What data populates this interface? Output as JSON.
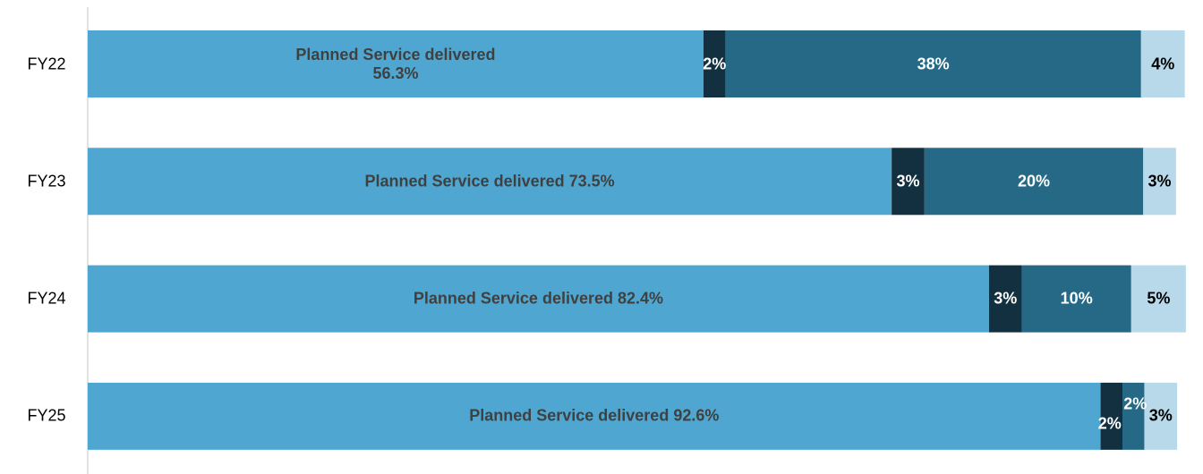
{
  "chart_data": {
    "type": "stacked-bar-horizontal",
    "categories": [
      "FY22",
      "FY23",
      "FY24",
      "FY25"
    ],
    "xlim": [
      0,
      100
    ],
    "series": [
      {
        "name": "Planned Service delivered",
        "color": "#4fa7d1",
        "label_color": "#404040",
        "values": [
          56.3,
          73.5,
          82.4,
          92.6
        ],
        "value_labels": [
          "Planned Service delivered\n56.3%",
          "Planned Service delivered 73.5%",
          "Planned Service delivered 82.4%",
          "Planned Service delivered 92.6%"
        ]
      },
      {
        "color": "#12303f",
        "label_color": "#ffffff",
        "values": [
          2,
          3,
          3,
          2
        ],
        "value_labels": [
          "2%",
          "3%",
          "3%",
          "2%"
        ]
      },
      {
        "color": "#256987",
        "label_color": "#ffffff",
        "values": [
          38,
          20,
          10,
          2
        ],
        "value_labels": [
          "38%",
          "20%",
          "10%",
          "2%"
        ]
      },
      {
        "color": "#b8d9ea",
        "label_color": "#000000",
        "values": [
          4,
          3,
          5,
          3
        ],
        "value_labels": [
          "4%",
          "3%",
          "5%",
          "3%"
        ]
      }
    ]
  }
}
